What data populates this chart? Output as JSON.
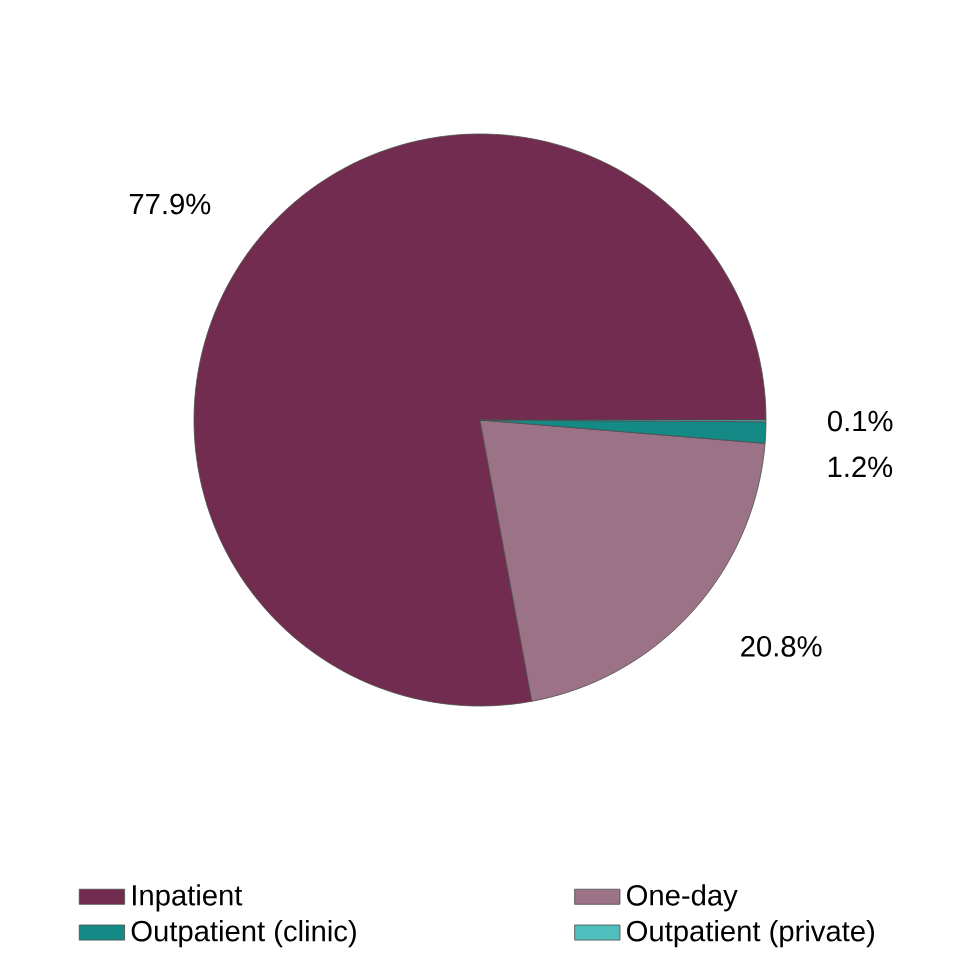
{
  "chart_data": {
    "type": "pie",
    "categories": [
      "Inpatient",
      "One-day",
      "Outpatient (clinic)",
      "Outpatient (private)"
    ],
    "values": [
      77.9,
      20.8,
      1.2,
      0.1
    ],
    "value_labels": [
      "77.9%",
      "20.8%",
      "1.2%",
      "0.1%"
    ],
    "colors": [
      "#722c50",
      "#9c7386",
      "#138a85",
      "#4fbfbd"
    ],
    "legend": "bottom"
  }
}
